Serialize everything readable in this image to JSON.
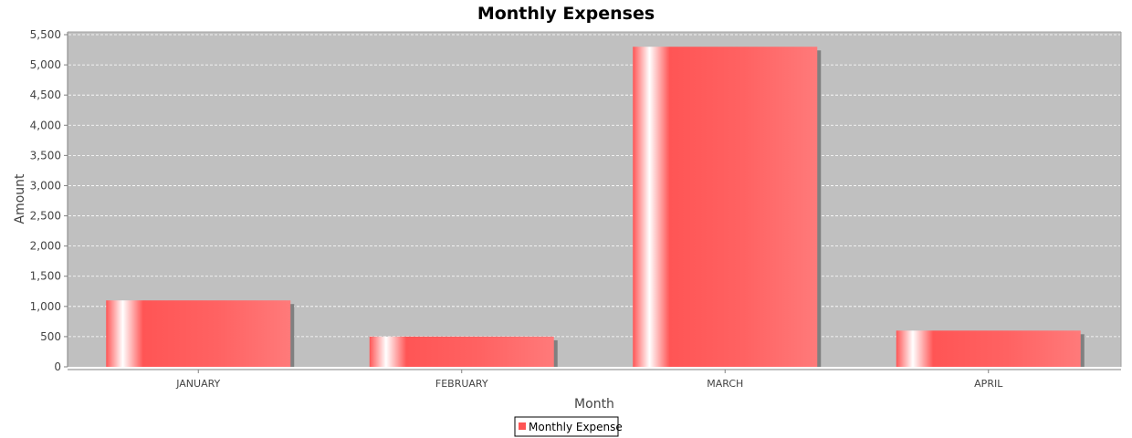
{
  "chart_data": {
    "type": "bar",
    "title": "Monthly Expenses",
    "xlabel": "Month",
    "ylabel": "Amount",
    "categories": [
      "JANUARY",
      "FEBRUARY",
      "MARCH",
      "APRIL"
    ],
    "series": [
      {
        "name": "Monthly Expense",
        "values": [
          1100,
          500,
          5300,
          600
        ]
      }
    ],
    "ylim": [
      0,
      5500
    ],
    "yticks": [
      0,
      500,
      1000,
      1500,
      2000,
      2500,
      3000,
      3500,
      4000,
      4500,
      5000,
      5500
    ],
    "ytick_labels": [
      "0",
      "500",
      "1,000",
      "1,500",
      "2,000",
      "2,500",
      "3,000",
      "3,500",
      "4,000",
      "4,500",
      "5,000",
      "5,500"
    ],
    "grid": true,
    "legend": "bottom-center",
    "colors": {
      "bar": "#ff5555",
      "bar_highlight": "#ffffff",
      "bar_edge_light": "#ff7a7a",
      "plot_background": "#c0c0c0",
      "gridline": "#ffffff",
      "shadow": "#808080"
    }
  }
}
